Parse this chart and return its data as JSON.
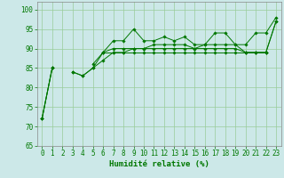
{
  "xlabel": "Humidité relative (%)",
  "xlim": [
    -0.5,
    23.5
  ],
  "ylim": [
    65,
    102
  ],
  "yticks": [
    65,
    70,
    75,
    80,
    85,
    90,
    95,
    100
  ],
  "xticks": [
    0,
    1,
    2,
    3,
    4,
    5,
    6,
    7,
    8,
    9,
    10,
    11,
    12,
    13,
    14,
    15,
    16,
    17,
    18,
    19,
    20,
    21,
    22,
    23
  ],
  "bg_color": "#cce8e8",
  "grid_color": "#99cc99",
  "line_color": "#007700",
  "series": [
    [
      72,
      85,
      null,
      84,
      83,
      85,
      89,
      92,
      92,
      95,
      92,
      92,
      93,
      92,
      93,
      91,
      91,
      94,
      94,
      91,
      91,
      94,
      94,
      98
    ],
    [
      72,
      85,
      null,
      null,
      null,
      86,
      89,
      90,
      90,
      90,
      90,
      91,
      91,
      91,
      91,
      90,
      91,
      91,
      91,
      91,
      89,
      89,
      89,
      97
    ],
    [
      null,
      null,
      null,
      null,
      null,
      null,
      89,
      89,
      89,
      89,
      89,
      89,
      89,
      89,
      89,
      89,
      89,
      89,
      89,
      89,
      89,
      89,
      89,
      null
    ],
    [
      72,
      85,
      null,
      84,
      83,
      85,
      87,
      89,
      89,
      90,
      90,
      90,
      90,
      90,
      90,
      90,
      90,
      90,
      90,
      90,
      89,
      89,
      89,
      97
    ]
  ],
  "label_fontsize": 6.5,
  "tick_fontsize": 5.5
}
